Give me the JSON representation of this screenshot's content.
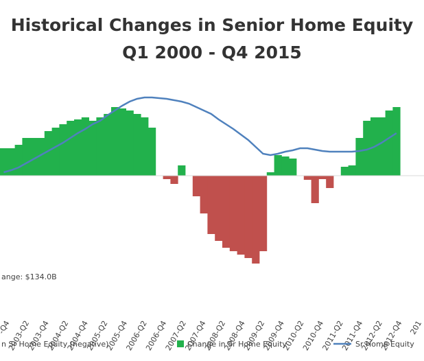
{
  "chart_data": {
    "type": "bar",
    "title": "Historical Changes in Senior Home Equity",
    "subtitle": "Q1 2000 - Q4 2015",
    "colors": {
      "positive": "#22b14c",
      "negative": "#c0504d",
      "line": "#4f81bd",
      "axis_text": "#404040"
    },
    "annotation": "ange: $134.0B",
    "tick_labels": [
      "-Q4",
      "2003-Q2",
      "2003-Q4",
      "2004-Q2",
      "2004-Q4",
      "2005-Q2",
      "2005-Q4",
      "2006-Q2",
      "2006-Q4",
      "2007-Q2",
      "2007-Q4",
      "2008-Q2",
      "2008-Q4",
      "2009-Q2",
      "2009-Q4",
      "2010-Q2",
      "2010-Q4",
      "2011-Q2",
      "2011-Q4",
      "2012-Q2",
      "2012-Q4",
      "201"
    ],
    "legend": [
      {
        "key": "negative",
        "label": "n Sr Home Equity (negative)"
      },
      {
        "key": "positive",
        "label": "Change in Sr Home Equity"
      },
      {
        "key": "line",
        "label": "Sr Home Equity"
      }
    ],
    "bar_values": [
      40,
      40,
      45,
      55,
      55,
      55,
      65,
      70,
      75,
      80,
      82,
      85,
      80,
      85,
      90,
      100,
      98,
      95,
      90,
      85,
      70,
      0,
      -5,
      -12,
      15,
      0,
      -30,
      -55,
      -85,
      -95,
      -105,
      -110,
      -115,
      -120,
      -128,
      -110,
      5,
      30,
      28,
      25,
      0,
      -6,
      -40,
      -5,
      -18,
      0,
      13,
      15,
      55,
      80,
      85,
      85,
      95,
      100
    ],
    "line_values": [
      5,
      8,
      12,
      18,
      24,
      30,
      36,
      42,
      48,
      55,
      62,
      68,
      75,
      80,
      88,
      95,
      102,
      108,
      112,
      114,
      114,
      113,
      112,
      110,
      108,
      105,
      100,
      95,
      90,
      82,
      75,
      68,
      60,
      52,
      42,
      32,
      30,
      32,
      35,
      37,
      40,
      40,
      38,
      36,
      35,
      35,
      35,
      35,
      36,
      38,
      42,
      48,
      55,
      62
    ]
  }
}
